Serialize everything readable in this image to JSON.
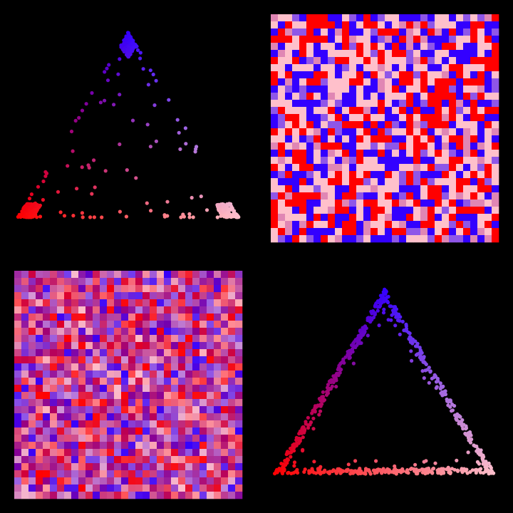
{
  "panels": [
    {
      "kind": "scatter",
      "layout": "corners"
    },
    {
      "kind": "grid",
      "layout": "discrete"
    },
    {
      "kind": "grid",
      "layout": "blended"
    },
    {
      "kind": "scatter",
      "layout": "edges"
    }
  ],
  "corner_colors": [
    "#ff0000",
    "#ffc0cb",
    "#3300ff"
  ],
  "background": "#000000"
}
